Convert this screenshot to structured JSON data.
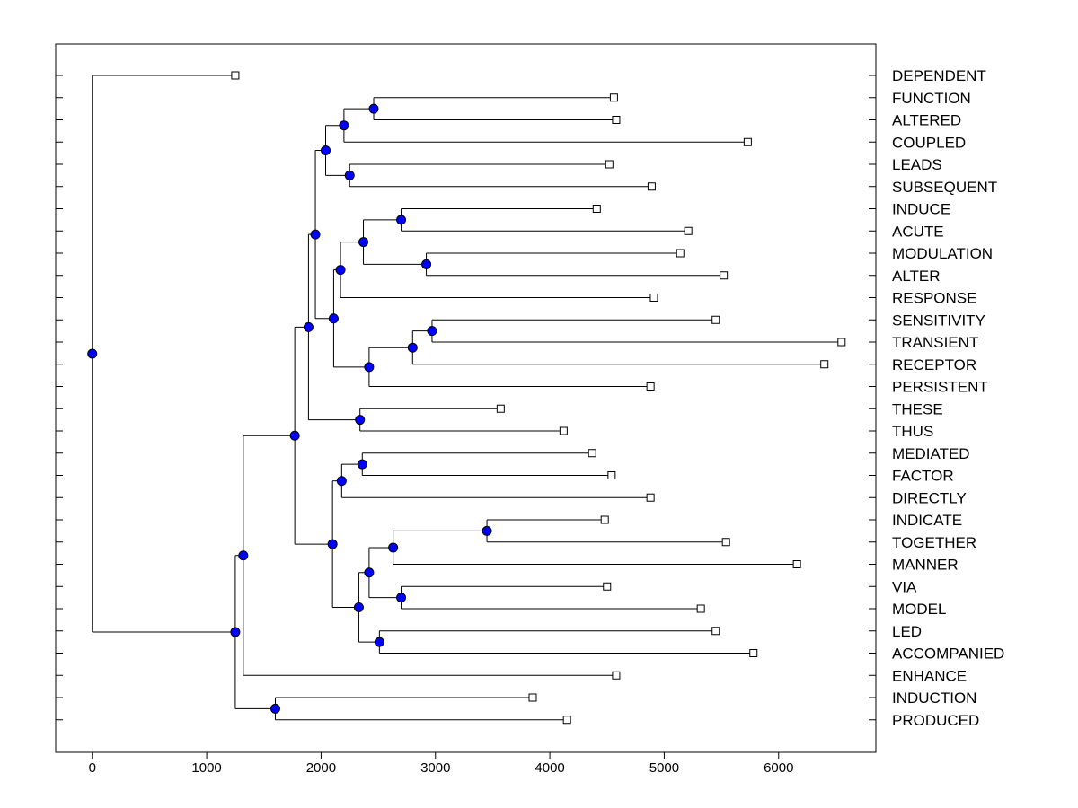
{
  "chart_data": {
    "type": "dendrogram",
    "title": "",
    "xlabel": "",
    "ylabel": "",
    "xlim": [
      -320,
      6850
    ],
    "x_ticks": [
      "0",
      "1000",
      "2000",
      "3000",
      "4000",
      "5000",
      "6000"
    ],
    "grid": false,
    "node_color": "#0000ff",
    "line_color": "#000000",
    "leaves": [
      {
        "label": "DEPENDENT",
        "x": 1250
      },
      {
        "label": "FUNCTION",
        "x": 4560
      },
      {
        "label": "ALTERED",
        "x": 4580
      },
      {
        "label": "COUPLED",
        "x": 5730
      },
      {
        "label": "LEADS",
        "x": 4520
      },
      {
        "label": "SUBSEQUENT",
        "x": 4890
      },
      {
        "label": "INDUCE",
        "x": 4410
      },
      {
        "label": "ACUTE",
        "x": 5210
      },
      {
        "label": "MODULATION",
        "x": 5140
      },
      {
        "label": "ALTER",
        "x": 5520
      },
      {
        "label": "RESPONSE",
        "x": 4910
      },
      {
        "label": "SENSITIVITY",
        "x": 5450
      },
      {
        "label": "TRANSIENT",
        "x": 6550
      },
      {
        "label": "RECEPTOR",
        "x": 6400
      },
      {
        "label": "PERSISTENT",
        "x": 4880
      },
      {
        "label": "THESE",
        "x": 3570
      },
      {
        "label": "THUS",
        "x": 4120
      },
      {
        "label": "MEDIATED",
        "x": 4370
      },
      {
        "label": "FACTOR",
        "x": 4540
      },
      {
        "label": "DIRECTLY",
        "x": 4880
      },
      {
        "label": "INDICATE",
        "x": 4480
      },
      {
        "label": "TOGETHER",
        "x": 5540
      },
      {
        "label": "MANNER",
        "x": 6160
      },
      {
        "label": "VIA",
        "x": 4500
      },
      {
        "label": "MODEL",
        "x": 5320
      },
      {
        "label": "LED",
        "x": 5450
      },
      {
        "label": "ACCOMPANIED",
        "x": 5780
      },
      {
        "label": "ENHANCE",
        "x": 4580
      },
      {
        "label": "INDUCTION",
        "x": 3850
      },
      {
        "label": "PRODUCED",
        "x": 4150
      }
    ],
    "merges": [
      {
        "id": "m1",
        "x": 2460,
        "children": [
          1,
          2
        ]
      },
      {
        "id": "m2",
        "x": 2200,
        "children": [
          "m1",
          3
        ]
      },
      {
        "id": "m3",
        "x": 2250,
        "children": [
          4,
          5
        ]
      },
      {
        "id": "m4",
        "x": 2040,
        "children": [
          "m2",
          "m3"
        ]
      },
      {
        "id": "m5",
        "x": 2700,
        "children": [
          6,
          7
        ]
      },
      {
        "id": "m6",
        "x": 2920,
        "children": [
          8,
          9
        ]
      },
      {
        "id": "m7",
        "x": 2370,
        "children": [
          "m5",
          "m6"
        ]
      },
      {
        "id": "m8",
        "x": 2170,
        "children": [
          "m7",
          10
        ]
      },
      {
        "id": "m9",
        "x": 2970,
        "children": [
          11,
          12
        ]
      },
      {
        "id": "m10",
        "x": 2800,
        "children": [
          "m9",
          13
        ]
      },
      {
        "id": "m11",
        "x": 2420,
        "children": [
          "m10",
          14
        ]
      },
      {
        "id": "m12",
        "x": 2110,
        "children": [
          "m8",
          "m11"
        ]
      },
      {
        "id": "m13",
        "x": 1950,
        "children": [
          "m4",
          "m12"
        ]
      },
      {
        "id": "m14",
        "x": 2340,
        "children": [
          15,
          16
        ]
      },
      {
        "id": "m15",
        "x": 1890,
        "children": [
          "m13",
          "m14"
        ]
      },
      {
        "id": "m16",
        "x": 2360,
        "children": [
          17,
          18
        ]
      },
      {
        "id": "m17",
        "x": 2180,
        "children": [
          "m16",
          19
        ]
      },
      {
        "id": "m18",
        "x": 3450,
        "children": [
          20,
          21
        ]
      },
      {
        "id": "m19",
        "x": 2630,
        "children": [
          "m18",
          22
        ]
      },
      {
        "id": "m20",
        "x": 2700,
        "children": [
          23,
          24
        ]
      },
      {
        "id": "m21",
        "x": 2420,
        "children": [
          "m19",
          "m20"
        ]
      },
      {
        "id": "m22",
        "x": 2510,
        "children": [
          25,
          26
        ]
      },
      {
        "id": "m23",
        "x": 2330,
        "children": [
          "m21",
          "m22"
        ]
      },
      {
        "id": "m24",
        "x": 2100,
        "children": [
          "m17",
          "m23"
        ]
      },
      {
        "id": "m25",
        "x": 1770,
        "children": [
          "m15",
          "m24"
        ]
      },
      {
        "id": "m26",
        "x": 1320,
        "children": [
          "m25",
          27
        ]
      },
      {
        "id": "m27",
        "x": 1600,
        "children": [
          28,
          29
        ]
      },
      {
        "id": "m28",
        "x": 1250,
        "children": [
          "m26",
          "m27"
        ]
      },
      {
        "id": "m29",
        "x": 0,
        "children": [
          0,
          "m28"
        ]
      }
    ]
  }
}
